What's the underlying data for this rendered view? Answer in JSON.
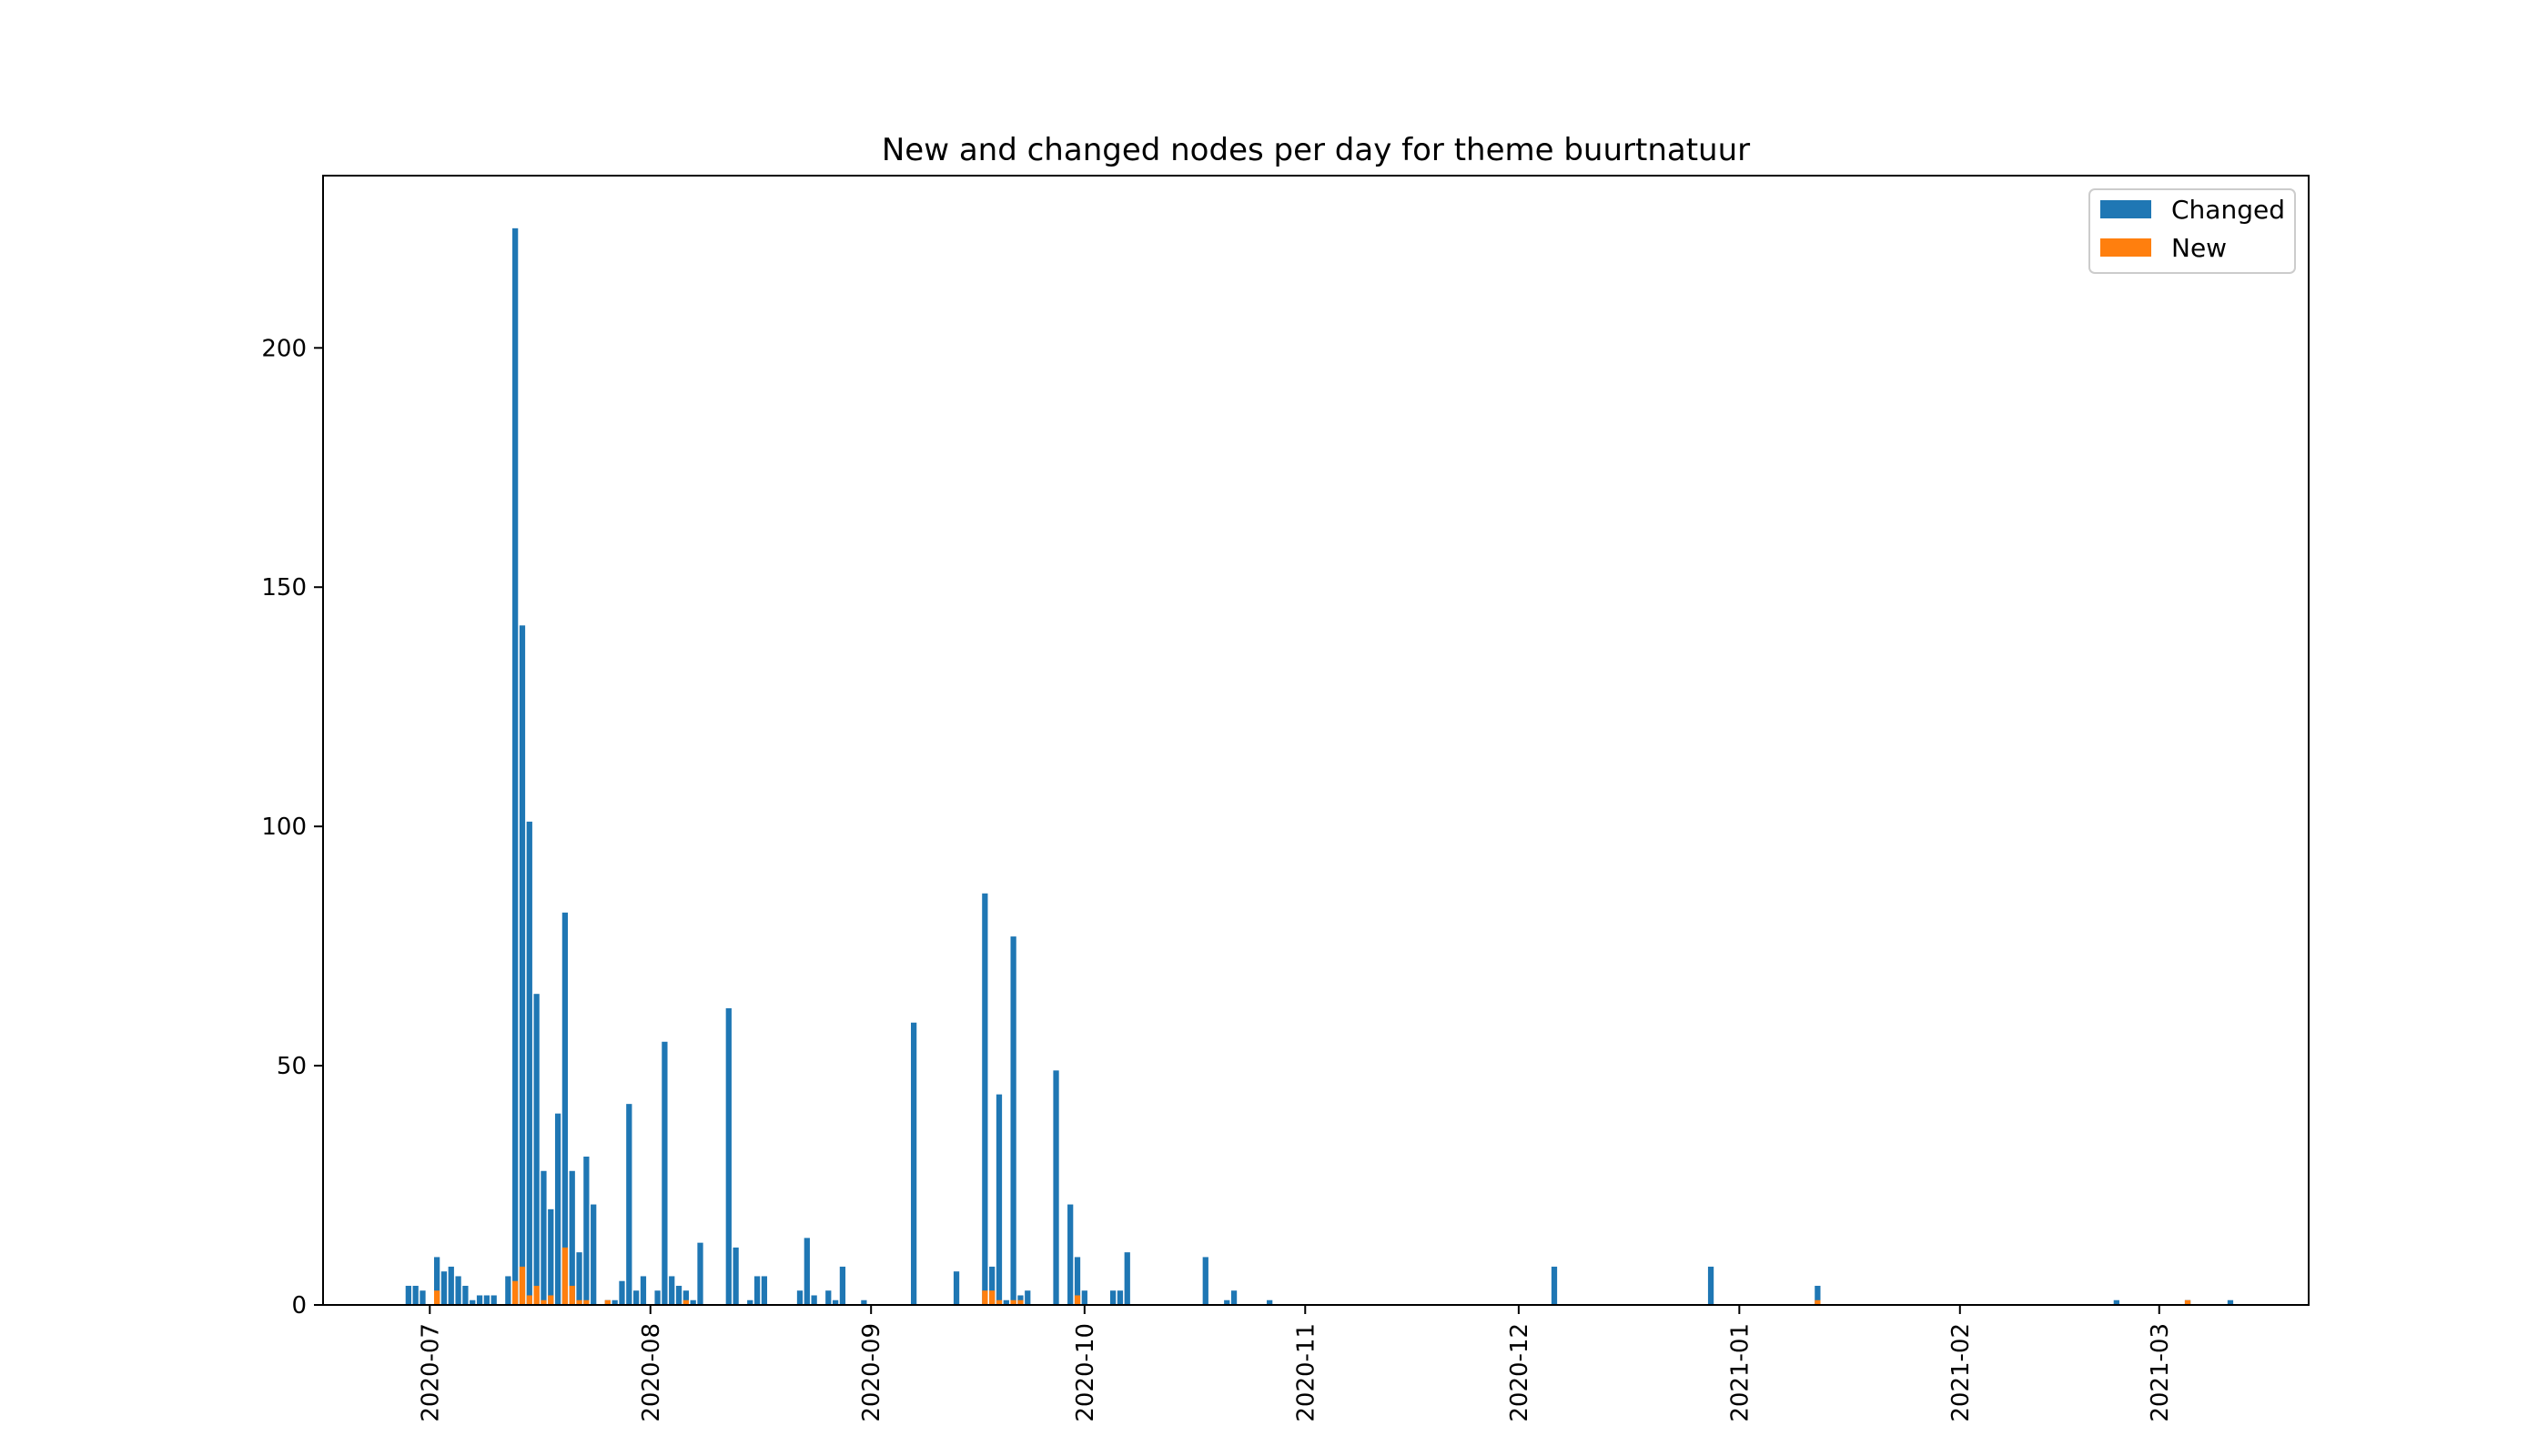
{
  "chart_data": {
    "type": "bar",
    "title": "New and changed nodes per day for theme buurtnatuur",
    "xlabel": "",
    "ylabel": "",
    "ylim": [
      0,
      236
    ],
    "yticks": [
      0,
      50,
      100,
      150,
      200
    ],
    "xlim": [
      "2020-06-16",
      "2021-03-22"
    ],
    "xticks": [
      "2020-07",
      "2020-08",
      "2020-09",
      "2020-10",
      "2020-11",
      "2020-12",
      "2021-01",
      "2021-02",
      "2021-03"
    ],
    "legend_position": "top-right",
    "grid": false,
    "stacking": "overlaid",
    "series": [
      {
        "name": "Changed",
        "color": "#1f77b4",
        "points": [
          [
            "2020-06-28",
            4
          ],
          [
            "2020-06-29",
            4
          ],
          [
            "2020-06-30",
            3
          ],
          [
            "2020-07-02",
            10
          ],
          [
            "2020-07-03",
            7
          ],
          [
            "2020-07-04",
            8
          ],
          [
            "2020-07-05",
            6
          ],
          [
            "2020-07-06",
            4
          ],
          [
            "2020-07-07",
            1
          ],
          [
            "2020-07-08",
            2
          ],
          [
            "2020-07-09",
            2
          ],
          [
            "2020-07-10",
            2
          ],
          [
            "2020-07-12",
            6
          ],
          [
            "2020-07-13",
            225
          ],
          [
            "2020-07-14",
            142
          ],
          [
            "2020-07-15",
            101
          ],
          [
            "2020-07-16",
            65
          ],
          [
            "2020-07-17",
            28
          ],
          [
            "2020-07-18",
            20
          ],
          [
            "2020-07-19",
            40
          ],
          [
            "2020-07-20",
            82
          ],
          [
            "2020-07-21",
            28
          ],
          [
            "2020-07-22",
            11
          ],
          [
            "2020-07-23",
            31
          ],
          [
            "2020-07-24",
            21
          ],
          [
            "2020-07-26",
            1
          ],
          [
            "2020-07-27",
            1
          ],
          [
            "2020-07-28",
            5
          ],
          [
            "2020-07-29",
            42
          ],
          [
            "2020-07-30",
            3
          ],
          [
            "2020-07-31",
            6
          ],
          [
            "2020-08-02",
            3
          ],
          [
            "2020-08-03",
            55
          ],
          [
            "2020-08-04",
            6
          ],
          [
            "2020-08-05",
            4
          ],
          [
            "2020-08-06",
            3
          ],
          [
            "2020-08-07",
            1
          ],
          [
            "2020-08-08",
            13
          ],
          [
            "2020-08-12",
            62
          ],
          [
            "2020-08-13",
            12
          ],
          [
            "2020-08-15",
            1
          ],
          [
            "2020-08-16",
            6
          ],
          [
            "2020-08-17",
            6
          ],
          [
            "2020-08-22",
            3
          ],
          [
            "2020-08-23",
            14
          ],
          [
            "2020-08-24",
            2
          ],
          [
            "2020-08-26",
            3
          ],
          [
            "2020-08-27",
            1
          ],
          [
            "2020-08-28",
            8
          ],
          [
            "2020-08-31",
            1
          ],
          [
            "2020-09-07",
            59
          ],
          [
            "2020-09-13",
            7
          ],
          [
            "2020-09-17",
            86
          ],
          [
            "2020-09-18",
            8
          ],
          [
            "2020-09-19",
            44
          ],
          [
            "2020-09-20",
            1
          ],
          [
            "2020-09-21",
            77
          ],
          [
            "2020-09-22",
            2
          ],
          [
            "2020-09-23",
            3
          ],
          [
            "2020-09-27",
            49
          ],
          [
            "2020-09-29",
            21
          ],
          [
            "2020-09-30",
            10
          ],
          [
            "2020-10-01",
            3
          ],
          [
            "2020-10-05",
            3
          ],
          [
            "2020-10-06",
            3
          ],
          [
            "2020-10-07",
            11
          ],
          [
            "2020-10-18",
            10
          ],
          [
            "2020-10-21",
            1
          ],
          [
            "2020-10-22",
            3
          ],
          [
            "2020-10-27",
            1
          ],
          [
            "2020-12-06",
            8
          ],
          [
            "2020-12-28",
            8
          ],
          [
            "2021-01-12",
            4
          ],
          [
            "2021-02-23",
            1
          ],
          [
            "2021-03-05",
            1
          ],
          [
            "2021-03-11",
            1
          ]
        ]
      },
      {
        "name": "New",
        "color": "#ff7f0e",
        "points": [
          [
            "2020-07-02",
            3
          ],
          [
            "2020-07-13",
            5
          ],
          [
            "2020-07-14",
            8
          ],
          [
            "2020-07-15",
            2
          ],
          [
            "2020-07-16",
            4
          ],
          [
            "2020-07-17",
            1
          ],
          [
            "2020-07-18",
            2
          ],
          [
            "2020-07-20",
            12
          ],
          [
            "2020-07-21",
            4
          ],
          [
            "2020-07-22",
            1
          ],
          [
            "2020-07-23",
            1
          ],
          [
            "2020-07-26",
            1
          ],
          [
            "2020-08-06",
            1
          ],
          [
            "2020-09-17",
            3
          ],
          [
            "2020-09-18",
            3
          ],
          [
            "2020-09-19",
            1
          ],
          [
            "2020-09-21",
            1
          ],
          [
            "2020-09-22",
            1
          ],
          [
            "2020-09-30",
            2
          ],
          [
            "2021-01-12",
            1
          ],
          [
            "2021-03-05",
            1
          ]
        ]
      }
    ]
  }
}
